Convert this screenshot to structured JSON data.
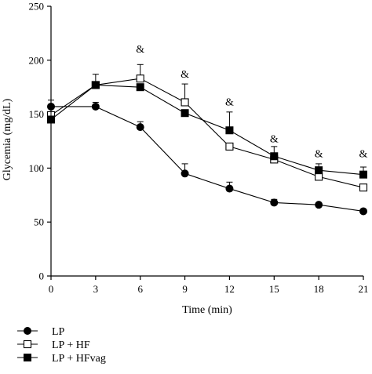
{
  "chart_data": {
    "type": "line",
    "title": "",
    "xlabel": "Time (min)",
    "ylabel": "Glycemia (mg/dL)",
    "x": [
      0,
      3,
      6,
      9,
      12,
      15,
      18,
      21
    ],
    "xticks": [
      "0",
      "3",
      "6",
      "9",
      "12",
      "15",
      "18",
      "21"
    ],
    "yticks": [
      "0",
      "50",
      "100",
      "150",
      "200",
      "250"
    ],
    "xlim": [
      0,
      21
    ],
    "ylim": [
      0,
      250
    ],
    "grid": false,
    "legend_position": "bottom-left",
    "series": [
      {
        "name": "LP",
        "marker": "filled-circle",
        "values": [
          157,
          157,
          138,
          95,
          81,
          68,
          66,
          60
        ],
        "errors": [
          0,
          4,
          5,
          9,
          6,
          3,
          0,
          0
        ]
      },
      {
        "name": "LP + HF",
        "marker": "open-square",
        "values": [
          149,
          177,
          183,
          161,
          120,
          108,
          92,
          82
        ],
        "errors": [
          0,
          0,
          13,
          17,
          0,
          0,
          0,
          0
        ]
      },
      {
        "name": "LP + HFvag",
        "marker": "filled-square",
        "values": [
          145,
          177,
          175,
          151,
          135,
          111,
          98,
          94
        ],
        "errors": [
          18,
          10,
          0,
          0,
          17,
          9,
          6,
          7
        ]
      }
    ],
    "annotations": [
      {
        "x": 6,
        "y": 207,
        "text": "&"
      },
      {
        "x": 9,
        "y": 184,
        "text": "&"
      },
      {
        "x": 12,
        "y": 158,
        "text": "&"
      },
      {
        "x": 15,
        "y": 124,
        "text": "&"
      },
      {
        "x": 18,
        "y": 110,
        "text": "&"
      },
      {
        "x": 21,
        "y": 110,
        "text": "&"
      }
    ]
  }
}
